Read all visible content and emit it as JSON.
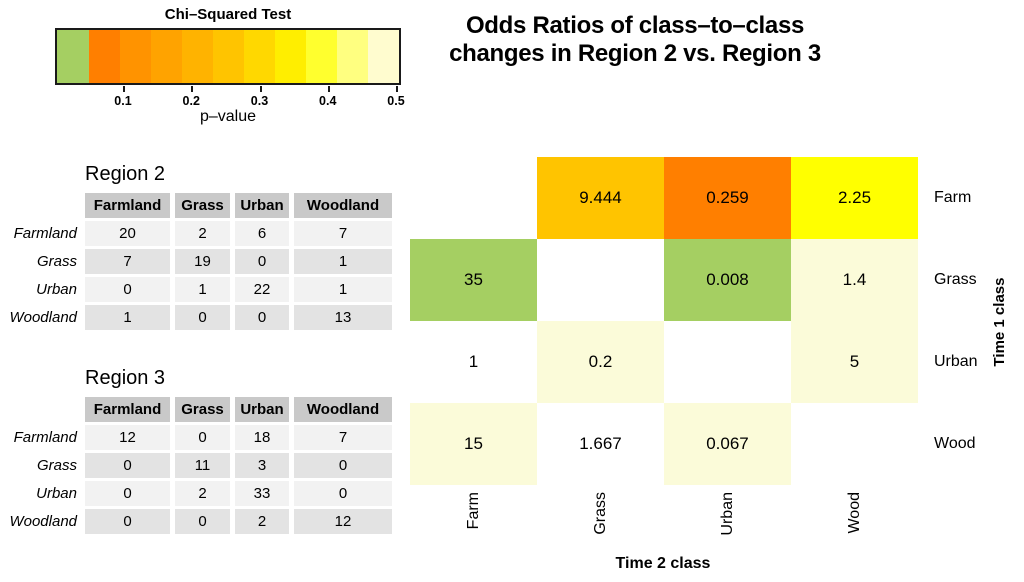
{
  "legend": {
    "title": "Chi–Squared Test",
    "xlabel": "p–value",
    "ticks": [
      "0.1",
      "0.2",
      "0.3",
      "0.4",
      "0.5"
    ],
    "significant_color": "#a5cf62",
    "segment_colors": [
      "#a5cf62",
      "#ff7f00",
      "#ff9300",
      "#ffa300",
      "#ffb300",
      "#ffc400",
      "#ffd800",
      "#ffee00",
      "#ffff2e",
      "#ffff80",
      "#fffccf"
    ]
  },
  "title": {
    "line1": "Odds Ratios of class–to–class",
    "line2": "changes in Region 2 vs. Region 3"
  },
  "tables": [
    {
      "title": "Region 2",
      "columns": [
        "Farmland",
        "Grass",
        "Urban",
        "Woodland"
      ],
      "row_labels": [
        "Farmland",
        "Grass",
        "Urban",
        "Woodland"
      ],
      "values": [
        [
          20,
          2,
          6,
          7
        ],
        [
          7,
          19,
          0,
          1
        ],
        [
          0,
          1,
          22,
          1
        ],
        [
          1,
          0,
          0,
          13
        ]
      ]
    },
    {
      "title": "Region 3",
      "columns": [
        "Farmland",
        "Grass",
        "Urban",
        "Woodland"
      ],
      "row_labels": [
        "Farmland",
        "Grass",
        "Urban",
        "Woodland"
      ],
      "values": [
        [
          12,
          0,
          18,
          7
        ],
        [
          0,
          11,
          3,
          0
        ],
        [
          0,
          2,
          33,
          0
        ],
        [
          0,
          0,
          2,
          12
        ]
      ]
    }
  ],
  "heatmap": {
    "xlabel": "Time 2 class",
    "ylabel": "Time 1 class",
    "col_labels": [
      "Farm",
      "Grass",
      "Urban",
      "Wood"
    ],
    "row_labels": [
      "Farm",
      "Grass",
      "Urban",
      "Wood"
    ],
    "cells": [
      [
        {
          "value": "",
          "color": "#ffffff"
        },
        {
          "value": "9.444",
          "color": "#ffc400"
        },
        {
          "value": "0.259",
          "color": "#ff7f00"
        },
        {
          "value": "2.25",
          "color": "#ffff00"
        }
      ],
      [
        {
          "value": "35",
          "color": "#a5cf62"
        },
        {
          "value": "",
          "color": "#ffffff"
        },
        {
          "value": "0.008",
          "color": "#a5cf62"
        },
        {
          "value": "1.4",
          "color": "#fbfbd9"
        }
      ],
      [
        {
          "value": "1",
          "color": "#ffffff"
        },
        {
          "value": "0.2",
          "color": "#fbfbd9"
        },
        {
          "value": "",
          "color": "#ffffff"
        },
        {
          "value": "5",
          "color": "#fbfbd9"
        }
      ],
      [
        {
          "value": "15",
          "color": "#fbfbd9"
        },
        {
          "value": "1.667",
          "color": "#ffffff"
        },
        {
          "value": "0.067",
          "color": "#fbfbd9"
        },
        {
          "value": "",
          "color": "#ffffff"
        }
      ]
    ]
  },
  "chart_data": [
    {
      "type": "table",
      "title": "Region 2",
      "columns": [
        "Farmland",
        "Grass",
        "Urban",
        "Woodland"
      ],
      "rows": [
        [
          "Farmland",
          20,
          2,
          6,
          7
        ],
        [
          "Grass",
          7,
          19,
          0,
          1
        ],
        [
          "Urban",
          0,
          1,
          22,
          1
        ],
        [
          "Woodland",
          1,
          0,
          0,
          13
        ]
      ]
    },
    {
      "type": "table",
      "title": "Region 3",
      "columns": [
        "Farmland",
        "Grass",
        "Urban",
        "Woodland"
      ],
      "rows": [
        [
          "Farmland",
          12,
          0,
          18,
          7
        ],
        [
          "Grass",
          0,
          11,
          3,
          0
        ],
        [
          "Urban",
          0,
          2,
          33,
          0
        ],
        [
          "Woodland",
          0,
          0,
          2,
          12
        ]
      ]
    },
    {
      "type": "heatmap",
      "title": "Odds Ratios of class–to–class changes in Region 2 vs. Region 3",
      "xlabel": "Time 2 class",
      "ylabel": "Time 1 class",
      "x_categories": [
        "Farm",
        "Grass",
        "Urban",
        "Wood"
      ],
      "y_categories": [
        "Farm",
        "Grass",
        "Urban",
        "Wood"
      ],
      "values": [
        [
          null,
          9.444,
          0.259,
          2.25
        ],
        [
          35,
          null,
          0.008,
          1.4
        ],
        [
          1,
          0.2,
          null,
          5
        ],
        [
          15,
          1.667,
          0.067,
          null
        ]
      ],
      "color_scale": {
        "title": "Chi–Squared Test",
        "xlabel": "p–value",
        "range": [
          0,
          0.5
        ],
        "ticks": [
          0.1,
          0.2,
          0.3,
          0.4,
          0.5
        ],
        "significant_color": "#a5cf62",
        "heat_colors": [
          "#ff7f00",
          "#ff9300",
          "#ffa300",
          "#ffb300",
          "#ffc400",
          "#ffd800",
          "#ffee00",
          "#ffff2e",
          "#ffff80",
          "#fffccf"
        ],
        "legend_position": "top-left"
      }
    }
  ]
}
